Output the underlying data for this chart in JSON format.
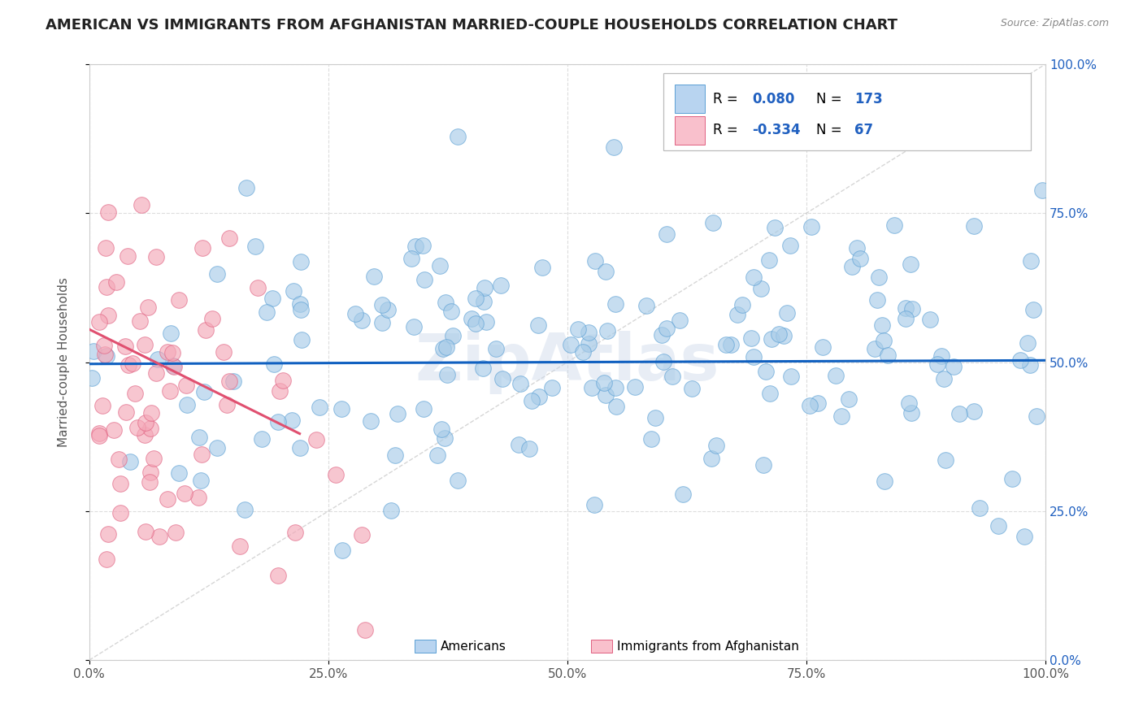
{
  "title": "AMERICAN VS IMMIGRANTS FROM AFGHANISTAN MARRIED-COUPLE HOUSEHOLDS CORRELATION CHART",
  "source": "Source: ZipAtlas.com",
  "ylabel": "Married-couple Households",
  "xlim": [
    0.0,
    1.0
  ],
  "ylim": [
    0.0,
    1.0
  ],
  "xticks": [
    0.0,
    0.25,
    0.5,
    0.75,
    1.0
  ],
  "yticks": [
    0.0,
    0.25,
    0.5,
    0.75,
    1.0
  ],
  "xtick_labels": [
    "0.0%",
    "25.0%",
    "50.0%",
    "75.0%",
    "100.0%"
  ],
  "ytick_labels": [
    "0.0%",
    "25.0%",
    "50.0%",
    "75.0%",
    "100.0%"
  ],
  "american_color": "#a8cce8",
  "afghan_color": "#f4a8b8",
  "american_edge": "#5a9fd4",
  "afghan_edge": "#e06080",
  "trend_blue": "#1060c0",
  "trend_pink": "#e05070",
  "diagonal_color": "#cccccc",
  "grid_color": "#dddddd",
  "watermark": "ZipAtlas",
  "background": "#ffffff",
  "title_color": "#222222",
  "title_fontsize": 13,
  "source_color": "#888888",
  "ylabel_color": "#555555",
  "ytick_color": "#2060c0",
  "xtick_color": "#555555",
  "legend_R_blue": "0.080",
  "legend_N_blue": "173",
  "legend_R_pink": "-0.334",
  "legend_N_pink": "67",
  "legend_text_color": "#000000",
  "legend_num_color": "#2060c0",
  "blue_trend_x0": 0.0,
  "blue_trend_x1": 1.0,
  "blue_trend_y0": 0.497,
  "blue_trend_y1": 0.503,
  "pink_trend_x0": 0.0,
  "pink_trend_x1": 0.22,
  "pink_trend_y0": 0.555,
  "pink_trend_y1": 0.38,
  "scatter_seed_blue": 77,
  "scatter_seed_pink": 55
}
